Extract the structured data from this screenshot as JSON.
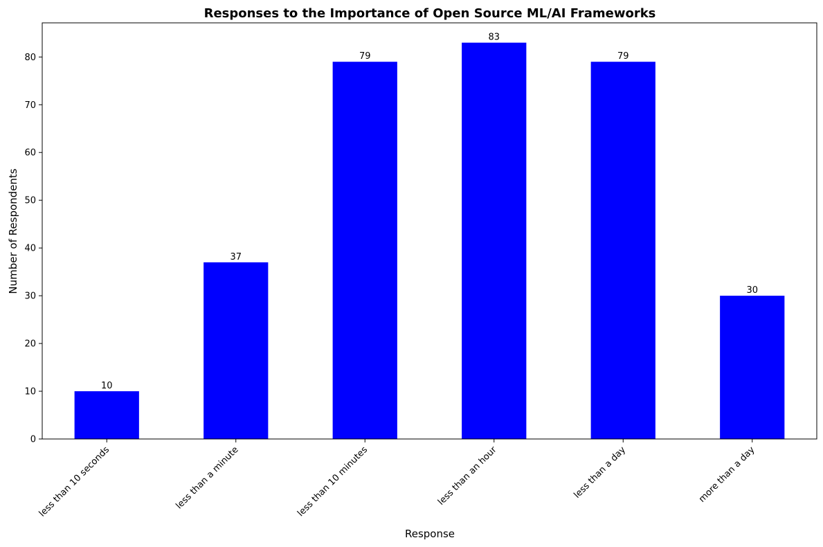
{
  "chart_data": {
    "type": "bar",
    "title": "Responses to the Importance of Open Source ML/AI Frameworks",
    "xlabel": "Response",
    "ylabel": "Number of Respondents",
    "categories": [
      "less than 10 seconds",
      "less than a minute",
      "less than 10 minutes",
      "less than an hour",
      "less than a day",
      "more than a day"
    ],
    "values": [
      10,
      37,
      79,
      83,
      79,
      30
    ],
    "ylim": [
      0,
      87.15
    ],
    "yticks": [
      0,
      10,
      20,
      30,
      40,
      50,
      60,
      70,
      80
    ],
    "bar_color": "#0000ff",
    "grid": false,
    "legend": "none"
  }
}
